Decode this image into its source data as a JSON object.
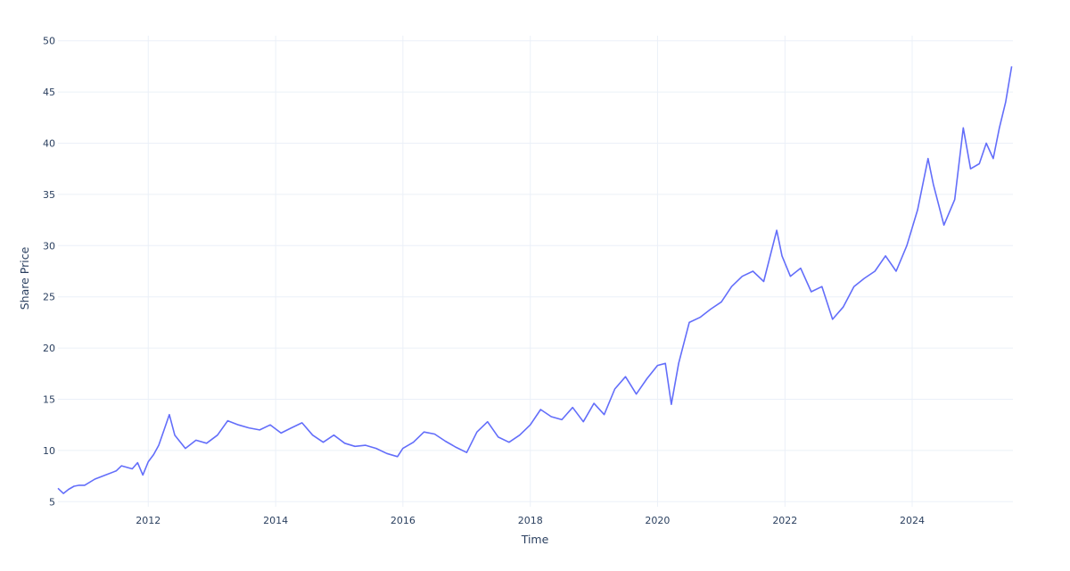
{
  "chart_data": {
    "type": "line",
    "title": "",
    "xlabel": "Time",
    "ylabel": "Share Price",
    "x_range": [
      "2010-08-01",
      "2025-08-01"
    ],
    "ylim": [
      4.5,
      50.5
    ],
    "y_ticks": [
      5,
      10,
      15,
      20,
      25,
      30,
      35,
      40,
      45,
      50
    ],
    "x_ticks": [
      "2012",
      "2014",
      "2016",
      "2018",
      "2020",
      "2022",
      "2024"
    ],
    "grid": true,
    "legend": "none",
    "line_color": "#636efa",
    "series": [
      {
        "x": [
          "2010-08-01",
          "2010-09-01",
          "2010-10-01",
          "2010-11-01",
          "2010-12-01",
          "2011-01-01",
          "2011-03-01",
          "2011-05-01",
          "2011-07-01",
          "2011-08-01",
          "2011-10-01",
          "2011-11-01",
          "2011-12-01",
          "2012-01-01",
          "2012-02-01",
          "2012-03-01",
          "2012-04-01",
          "2012-05-01",
          "2012-06-01",
          "2012-08-01",
          "2012-10-01",
          "2012-12-01",
          "2013-02-01",
          "2013-04-01",
          "2013-06-01",
          "2013-08-01",
          "2013-10-01",
          "2013-12-01",
          "2014-02-01",
          "2014-04-01",
          "2014-06-01",
          "2014-08-01",
          "2014-10-01",
          "2014-12-01",
          "2015-02-01",
          "2015-04-01",
          "2015-06-01",
          "2015-08-01",
          "2015-10-01",
          "2015-12-01",
          "2016-01-01",
          "2016-03-01",
          "2016-05-01",
          "2016-07-01",
          "2016-09-01",
          "2016-11-01",
          "2017-01-01",
          "2017-03-01",
          "2017-05-01",
          "2017-07-01",
          "2017-09-01",
          "2017-11-01",
          "2018-01-01",
          "2018-03-01",
          "2018-05-01",
          "2018-07-01",
          "2018-09-01",
          "2018-11-01",
          "2019-01-01",
          "2019-03-01",
          "2019-05-01",
          "2019-07-01",
          "2019-09-01",
          "2019-11-01",
          "2020-01-01",
          "2020-02-15",
          "2020-03-20",
          "2020-05-01",
          "2020-07-01",
          "2020-09-01",
          "2020-11-01",
          "2021-01-01",
          "2021-03-01",
          "2021-05-01",
          "2021-07-01",
          "2021-09-01",
          "2021-11-15",
          "2021-12-15",
          "2022-02-01",
          "2022-04-01",
          "2022-06-01",
          "2022-08-01",
          "2022-10-01",
          "2022-12-01",
          "2023-02-01",
          "2023-04-01",
          "2023-06-01",
          "2023-08-01",
          "2023-10-01",
          "2023-12-01",
          "2024-02-01",
          "2024-04-01",
          "2024-05-01",
          "2024-07-01",
          "2024-09-01",
          "2024-10-20",
          "2024-12-01",
          "2025-01-20",
          "2025-03-01",
          "2025-04-10",
          "2025-05-15",
          "2025-06-20",
          "2025-07-25"
        ],
        "y": [
          6.3,
          5.8,
          6.2,
          6.5,
          6.6,
          6.6,
          7.2,
          7.6,
          8.0,
          8.5,
          8.2,
          8.8,
          7.6,
          8.9,
          9.6,
          10.5,
          12.0,
          13.5,
          11.5,
          10.2,
          11.0,
          10.7,
          11.5,
          12.9,
          12.5,
          12.2,
          12.0,
          12.5,
          11.7,
          12.2,
          12.7,
          11.5,
          10.8,
          11.5,
          10.7,
          10.4,
          10.5,
          10.2,
          9.7,
          9.4,
          10.2,
          10.8,
          11.8,
          11.6,
          10.9,
          10.3,
          9.8,
          11.8,
          12.8,
          11.3,
          10.8,
          11.5,
          12.5,
          14.0,
          13.3,
          13.0,
          14.2,
          12.8,
          14.6,
          13.5,
          16.0,
          17.2,
          15.5,
          17.0,
          18.3,
          18.5,
          14.5,
          18.5,
          22.5,
          23.0,
          23.8,
          24.5,
          26.0,
          27.0,
          27.5,
          26.5,
          31.5,
          29.0,
          27.0,
          27.8,
          25.5,
          26.0,
          22.8,
          24.0,
          26.0,
          26.8,
          27.5,
          29.0,
          27.5,
          30.0,
          33.5,
          38.5,
          36.0,
          32.0,
          34.5,
          41.5,
          37.5,
          38.0,
          40.0,
          38.5,
          41.5,
          44.0,
          47.5
        ]
      }
    ]
  }
}
